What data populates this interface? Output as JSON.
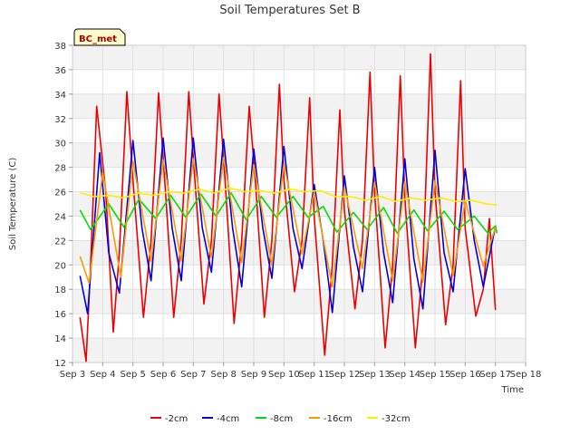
{
  "chart_data": {
    "type": "line",
    "title": "Soil Temperatures Set B",
    "xlabel": "Time",
    "ylabel": "Soil Temperature (C)",
    "site_label": "BC_met",
    "xlim": [
      3,
      18
    ],
    "ylim": [
      12,
      38
    ],
    "x_ticks": [
      {
        "value": 3,
        "label": "Sep 3"
      },
      {
        "value": 4,
        "label": "Sep 4"
      },
      {
        "value": 5,
        "label": "Sep 5"
      },
      {
        "value": 6,
        "label": "Sep 6"
      },
      {
        "value": 7,
        "label": "Sep 7"
      },
      {
        "value": 8,
        "label": "Sep 8"
      },
      {
        "value": 9,
        "label": "Sep 9"
      },
      {
        "value": 10,
        "label": "Sep 10"
      },
      {
        "value": 11,
        "label": "Sep 11"
      },
      {
        "value": 12,
        "label": "Sep 12"
      },
      {
        "value": 13,
        "label": "Sep 13"
      },
      {
        "value": 14,
        "label": "Sep 14"
      },
      {
        "value": 15,
        "label": "Sep 15"
      },
      {
        "value": 16,
        "label": "Sep 16"
      },
      {
        "value": 17,
        "label": "Sep 17"
      },
      {
        "value": 18,
        "label": "Sep 18"
      }
    ],
    "y_ticks": [
      12,
      14,
      16,
      18,
      20,
      22,
      24,
      26,
      28,
      30,
      32,
      34,
      36,
      38
    ],
    "grid": true,
    "legend_position": "bottom",
    "series": [
      {
        "name": "-2cm",
        "color": "#ee0000",
        "x": [
          3.25,
          3.45,
          3.6,
          3.8,
          4.1,
          4.35,
          4.55,
          4.8,
          5.0,
          5.35,
          5.6,
          5.85,
          6.05,
          6.35,
          6.6,
          6.85,
          7.05,
          7.35,
          7.6,
          7.85,
          8.05,
          8.35,
          8.6,
          8.85,
          9.05,
          9.35,
          9.6,
          9.85,
          10.0,
          10.35,
          10.6,
          10.85,
          11.0,
          11.35,
          11.6,
          11.85,
          12.0,
          12.35,
          12.6,
          12.85,
          13.0,
          13.35,
          13.6,
          13.85,
          14.0,
          14.35,
          14.6,
          14.85,
          15.0,
          15.35,
          15.6,
          15.85,
          16.0,
          16.35,
          16.6,
          16.8,
          17.0
        ],
        "y": [
          15.7,
          12.1,
          20.0,
          33.0,
          26.0,
          14.5,
          21.0,
          34.2,
          27.0,
          15.7,
          22.0,
          34.1,
          27.0,
          15.7,
          22.0,
          34.2,
          27.0,
          16.8,
          22.0,
          34.0,
          27.0,
          15.2,
          22.0,
          33.0,
          27.0,
          15.7,
          22.0,
          34.8,
          27.0,
          17.8,
          22.0,
          33.7,
          24.0,
          12.6,
          20.0,
          32.7,
          24.5,
          16.4,
          22.0,
          35.8,
          26.0,
          13.2,
          20.0,
          35.5,
          25.5,
          13.2,
          20.0,
          37.3,
          26.0,
          15.1,
          20.0,
          35.1,
          23.0,
          15.8,
          18.0,
          23.8,
          16.3
        ]
      },
      {
        "name": "-4cm",
        "color": "#0000dd",
        "x": [
          3.25,
          3.5,
          3.9,
          4.2,
          4.55,
          5.0,
          5.3,
          5.6,
          6.0,
          6.3,
          6.6,
          7.0,
          7.3,
          7.6,
          8.0,
          8.3,
          8.6,
          9.0,
          9.3,
          9.6,
          10.0,
          10.3,
          10.6,
          11.0,
          11.3,
          11.6,
          12.0,
          12.3,
          12.6,
          13.0,
          13.3,
          13.6,
          14.0,
          14.3,
          14.6,
          15.0,
          15.3,
          15.6,
          16.0,
          16.3,
          16.6,
          17.0
        ],
        "y": [
          19.1,
          16.0,
          29.2,
          21.0,
          17.7,
          30.2,
          23.0,
          18.7,
          30.4,
          23.0,
          18.7,
          30.4,
          23.0,
          19.4,
          30.3,
          23.0,
          18.2,
          29.5,
          23.0,
          18.9,
          29.7,
          23.0,
          19.7,
          26.6,
          22.0,
          16.1,
          27.3,
          21.5,
          17.8,
          28.0,
          21.0,
          16.9,
          28.7,
          20.5,
          16.4,
          29.4,
          21.0,
          17.8,
          27.9,
          22.0,
          18.2,
          23.2
        ]
      },
      {
        "name": "-8cm",
        "color": "#00dd00",
        "x": [
          3.25,
          3.6,
          4.2,
          4.7,
          5.2,
          5.75,
          6.25,
          6.75,
          7.25,
          7.75,
          8.25,
          8.75,
          9.25,
          9.75,
          10.3,
          10.8,
          11.3,
          11.75,
          12.3,
          12.75,
          13.3,
          13.75,
          14.3,
          14.75,
          15.3,
          15.75,
          16.3,
          16.75,
          17.0,
          17.05
        ],
        "y": [
          24.5,
          22.9,
          25.0,
          23.1,
          25.4,
          23.8,
          25.7,
          23.9,
          25.8,
          24.0,
          25.9,
          23.7,
          25.6,
          23.9,
          25.6,
          23.9,
          24.8,
          22.7,
          24.3,
          22.9,
          24.7,
          22.6,
          24.5,
          22.8,
          24.4,
          22.9,
          24.0,
          22.6,
          23.2,
          22.6
        ]
      },
      {
        "name": "-16cm",
        "color": "#ff9900",
        "x": [
          3.25,
          3.55,
          4.0,
          4.6,
          5.0,
          5.6,
          6.0,
          6.6,
          7.0,
          7.6,
          8.0,
          8.6,
          9.0,
          9.6,
          10.0,
          10.6,
          11.0,
          11.6,
          12.0,
          12.6,
          13.0,
          13.6,
          14.0,
          14.6,
          15.0,
          15.6,
          16.0,
          16.6,
          17.0
        ],
        "y": [
          20.7,
          18.5,
          27.6,
          19.0,
          28.5,
          20.3,
          28.6,
          20.3,
          28.7,
          20.6,
          28.8,
          20.2,
          28.2,
          20.0,
          28.3,
          20.9,
          26.0,
          18.2,
          26.4,
          19.7,
          26.8,
          18.7,
          26.8,
          18.6,
          26.9,
          19.1,
          25.3,
          19.9,
          23.1
        ]
      },
      {
        "name": "-32cm",
        "color": "#ffee00",
        "x": [
          3.25,
          3.7,
          4.2,
          4.7,
          5.2,
          5.7,
          6.2,
          6.7,
          7.2,
          7.7,
          8.2,
          8.7,
          9.2,
          9.7,
          10.2,
          10.7,
          11.2,
          11.7,
          12.2,
          12.7,
          13.2,
          13.7,
          14.2,
          14.7,
          15.2,
          15.7,
          16.2,
          16.7,
          17.05
        ],
        "y": [
          25.9,
          25.6,
          25.7,
          25.5,
          25.9,
          25.7,
          26.0,
          25.9,
          26.2,
          25.9,
          26.3,
          26.0,
          26.1,
          25.9,
          26.2,
          26.0,
          26.1,
          25.6,
          25.6,
          25.3,
          25.6,
          25.2,
          25.5,
          25.3,
          25.5,
          25.2,
          25.3,
          25.0,
          24.9
        ]
      }
    ]
  }
}
